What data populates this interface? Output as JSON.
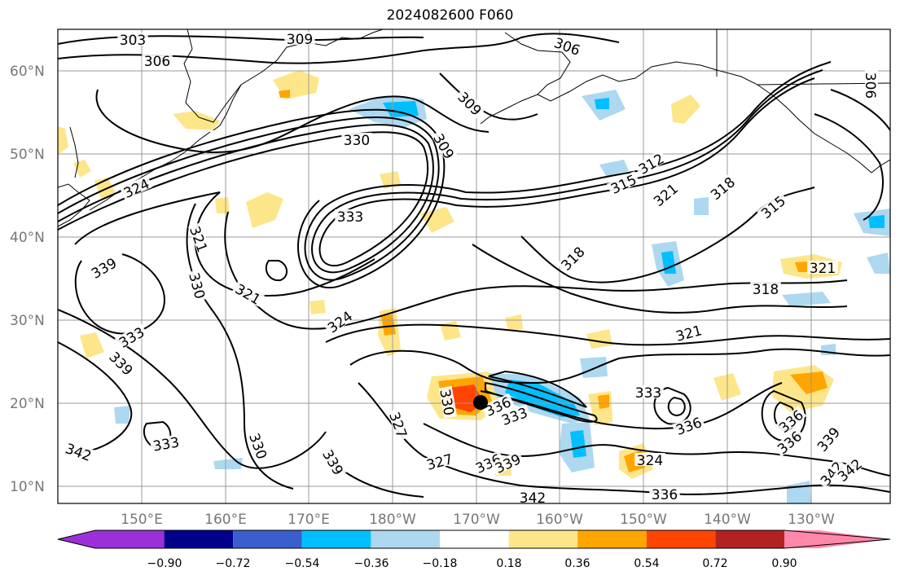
{
  "title": "2024082600 F060",
  "lat_labels": [
    "10°N",
    "20°N",
    "30°N",
    "40°N",
    "50°N",
    "60°N"
  ],
  "lon_labels": [
    "150°E",
    "160°E",
    "170°E",
    "180°W",
    "170°W",
    "160°W",
    "150°W",
    "140°W",
    "130°W"
  ],
  "colorbar": {
    "tick_labels": [
      "−0.90",
      "−0.72",
      "−0.54",
      "−0.36",
      "−0.18",
      "0.18",
      "0.36",
      "0.54",
      "0.72",
      "0.90"
    ],
    "colors": [
      "#9b30d8",
      "#00008b",
      "#3a5fcd",
      "#00bfff",
      "#add8f0",
      "#ffffff",
      "#fde68a",
      "#ffa500",
      "#ff4500",
      "#b22222",
      "#ff88aa"
    ]
  },
  "contour_labels": [
    "303",
    "306",
    "309",
    "306",
    "306",
    "309",
    "309",
    "330",
    "324",
    "333",
    "321",
    "330",
    "321",
    "339",
    "333",
    "339",
    "324",
    "315",
    "312",
    "321",
    "318",
    "315",
    "318",
    "321",
    "318",
    "321",
    "333",
    "336",
    "333",
    "330",
    "327",
    "327",
    "336",
    "339",
    "342",
    "336",
    "324",
    "342",
    "333",
    "330",
    "339",
    "336",
    "336",
    "339",
    "342",
    "336",
    "342"
  ]
}
